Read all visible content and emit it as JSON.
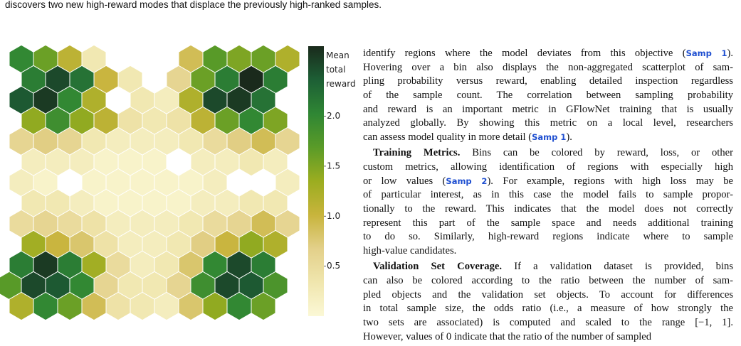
{
  "caption": "discovers two new high-reward modes that displace the previously high-ranked samples.",
  "chart_data": {
    "type": "hexbin",
    "colorbar_label": "Mean total reward",
    "clim": [
      0,
      2.7
    ],
    "ticks": [
      0.5,
      {
        "value": 1,
        "label": "1.0"
      },
      1.5,
      {
        "value": 2,
        "label": "2.0"
      }
    ],
    "colormap": [
      "#fbf8d6",
      "#f0e6ae",
      "#e3d08a",
      "#c8b43c",
      "#9bad20",
      "#5a9b28",
      "#2f8634",
      "#1d5f35",
      "#1a2a1c"
    ],
    "values": [
      [
        2.0,
        1.6,
        1.1,
        0.3,
        null,
        null,
        null,
        0.9,
        1.7,
        1.5,
        1.6,
        1.2
      ],
      [
        null,
        2.1,
        2.5,
        2.2,
        1.0,
        0.3,
        null,
        0.6,
        1.6,
        2.1,
        2.7,
        2.1
      ],
      [
        2.4,
        2.6,
        2.0,
        1.2,
        null,
        0.3,
        0.2,
        1.2,
        2.5,
        2.6,
        2.2,
        null
      ],
      [
        null,
        1.4,
        1.9,
        1.4,
        1.1,
        0.4,
        0.3,
        0.4,
        1.1,
        1.6,
        2.0,
        1.5
      ],
      [
        0.6,
        0.7,
        0.6,
        0.3,
        0.2,
        0.2,
        0.2,
        0.3,
        0.5,
        0.7,
        0.9,
        0.6
      ],
      [
        null,
        0.2,
        0.2,
        0.2,
        0.1,
        0.1,
        0.1,
        null,
        0.2,
        0.2,
        0.3,
        0.2
      ],
      [
        0.2,
        0.1,
        null,
        0.1,
        0.1,
        0.1,
        0.1,
        0.1,
        0.2,
        null,
        null,
        0.2
      ],
      [
        null,
        0.3,
        0.3,
        0.2,
        0.1,
        0.1,
        0.1,
        0.1,
        0.2,
        0.2,
        0.3,
        0.3
      ],
      [
        0.5,
        0.6,
        0.5,
        0.4,
        0.2,
        0.2,
        0.2,
        0.3,
        0.5,
        0.6,
        0.9,
        0.6
      ],
      [
        null,
        1.3,
        1.0,
        0.8,
        0.4,
        0.2,
        0.2,
        0.3,
        0.7,
        1.0,
        1.4,
        1.2
      ],
      [
        2.1,
        2.6,
        2.1,
        1.3,
        0.5,
        0.2,
        0.3,
        0.8,
        2.0,
        2.5,
        2.1,
        null
      ],
      [
        1.7,
        2.5,
        2.4,
        2.0,
        0.6,
        0.3,
        0.3,
        0.6,
        1.9,
        2.5,
        2.4,
        1.8
      ],
      [
        1.2,
        2.0,
        1.6,
        0.9,
        0.4,
        0.3,
        0.2,
        0.8,
        1.4,
        2.0,
        1.6,
        null
      ]
    ]
  },
  "text": {
    "paragraphs": [
      {
        "lines": [
          [
            "identify regions where the model deviates from this objective (",
            {
              "ref": "Samp 1"
            },
            ")."
          ],
          "Hovering over a bin also displays the non-aggregated scatterplot of sam-",
          "pling probability versus reward, enabling detailed inspection regardless",
          "of the sample count.  The correlation between sampling probability",
          "and reward is an important metric in GFlowNet training that is usually",
          "analyzed globally. By showing this metric on a local level, researchers",
          [
            "can assess model quality in more detail (",
            {
              "ref": "Samp 1"
            },
            ")."
          ]
        ]
      },
      {
        "lead": "Training Metrics.",
        "lines": [
          "Bins can be colored by reward, loss, or other",
          "custom metrics, allowing identification of regions with especially high",
          [
            "or low values (",
            {
              "ref": "Samp 2"
            },
            "). For example, regions with high loss may be"
          ],
          "of particular interest, as in this case the model fails to sample propor-",
          "tionally to the reward. This indicates that the model does not correctly",
          "represent this part of the sample space and needs additional training",
          "to do so.  Similarly, high-reward regions indicate where to sample",
          "high-value candidates."
        ]
      },
      {
        "lead": "Validation Set Coverage.",
        "lines": [
          "If a validation dataset is provided, bins",
          "can also be colored according to the ratio between the number of sam-",
          "pled objects and the validation set objects. To account for differences",
          "in total sample size, the odds ratio (i.e., a measure of how strongly the",
          "two sets are associated) is computed and scaled to the range [−1, 1].",
          "However, values of 0 indicate that the ratio of the number of sampled"
        ]
      }
    ]
  }
}
